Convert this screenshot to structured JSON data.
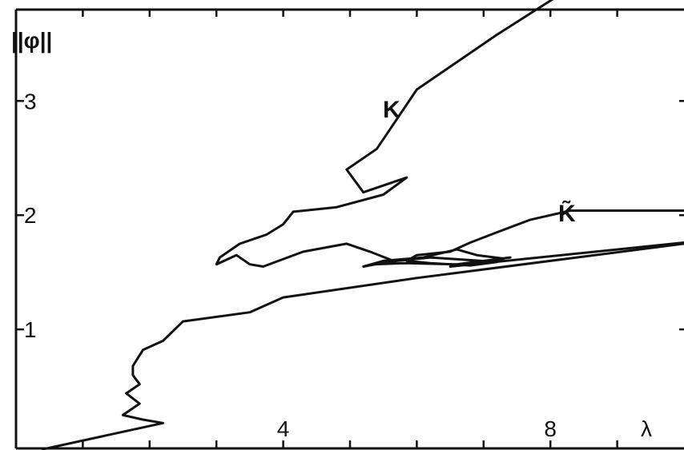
{
  "chart_data": {
    "type": "line",
    "ylabel": "||φ||",
    "xlabel": "λ",
    "xlim": [
      0,
      10
    ],
    "ylim": [
      0,
      3.8
    ],
    "x_ticks": [
      4,
      8
    ],
    "y_ticks": [
      1,
      2,
      3
    ],
    "grid": false,
    "curve_labels": [
      "K",
      "K̃"
    ],
    "series": [
      {
        "name": "K",
        "points": [
          [
            8.46,
            4.05
          ],
          [
            7.2,
            3.58
          ],
          [
            6.0,
            3.1
          ],
          [
            5.4,
            2.58
          ],
          [
            4.95,
            2.4
          ],
          [
            5.2,
            2.2
          ],
          [
            5.85,
            2.33
          ],
          [
            5.5,
            2.18
          ],
          [
            4.8,
            2.07
          ],
          [
            4.15,
            2.03
          ],
          [
            4.0,
            1.92
          ],
          [
            3.75,
            1.83
          ],
          [
            3.35,
            1.75
          ],
          [
            3.05,
            1.63
          ],
          [
            3.0,
            1.57
          ],
          [
            3.3,
            1.65
          ],
          [
            3.5,
            1.57
          ],
          [
            3.7,
            1.55
          ],
          [
            4.3,
            1.68
          ],
          [
            4.95,
            1.75
          ],
          [
            5.3,
            1.68
          ],
          [
            5.65,
            1.6
          ],
          [
            5.2,
            1.55
          ],
          [
            5.5,
            1.6
          ],
          [
            6.1,
            1.63
          ],
          [
            6.6,
            1.7
          ],
          [
            6.9,
            1.65
          ],
          [
            7.3,
            1.62
          ],
          [
            7.0,
            1.59
          ],
          [
            6.5,
            1.55
          ],
          [
            10.0,
            1.76
          ]
        ]
      },
      {
        "name": "K̃",
        "points": [
          [
            10.0,
            2.04
          ],
          [
            8.3,
            2.04
          ],
          [
            7.7,
            1.96
          ],
          [
            7.2,
            1.85
          ],
          [
            6.8,
            1.76
          ],
          [
            6.5,
            1.68
          ],
          [
            6.0,
            1.65
          ],
          [
            5.85,
            1.6
          ],
          [
            6.2,
            1.58
          ],
          [
            6.8,
            1.56
          ],
          [
            7.2,
            1.59
          ],
          [
            6.7,
            1.61
          ],
          [
            6.2,
            1.63
          ],
          [
            5.7,
            1.6
          ],
          [
            5.35,
            1.57
          ],
          [
            5.8,
            1.58
          ],
          [
            6.6,
            1.57
          ],
          [
            7.4,
            1.63
          ]
        ]
      },
      {
        "name": "",
        "points": [
          [
            0.4,
            -0.05
          ],
          [
            2.2,
            0.18
          ],
          [
            1.9,
            0.21
          ],
          [
            1.6,
            0.25
          ],
          [
            1.85,
            0.35
          ],
          [
            1.65,
            0.44
          ],
          [
            1.85,
            0.52
          ],
          [
            1.75,
            0.6
          ],
          [
            1.75,
            0.68
          ],
          [
            1.9,
            0.82
          ],
          [
            2.2,
            0.9
          ],
          [
            2.5,
            1.07
          ],
          [
            3.5,
            1.15
          ],
          [
            4.0,
            1.28
          ],
          [
            6.0,
            1.45
          ],
          [
            10.0,
            1.75
          ]
        ]
      }
    ]
  }
}
